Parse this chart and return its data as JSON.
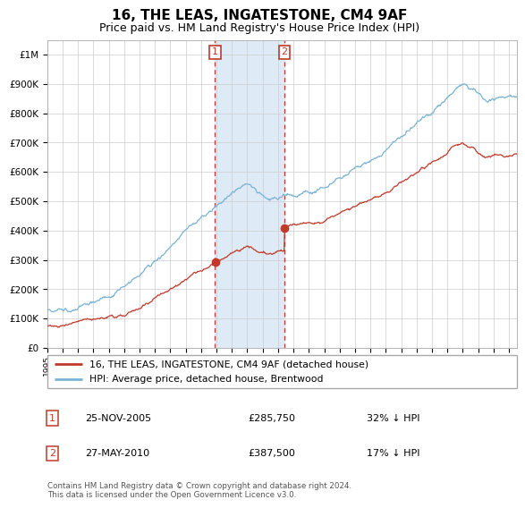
{
  "title": "16, THE LEAS, INGATESTONE, CM4 9AF",
  "subtitle": "Price paid vs. HM Land Registry's House Price Index (HPI)",
  "legend_line1": "16, THE LEAS, INGATESTONE, CM4 9AF (detached house)",
  "legend_line2": "HPI: Average price, detached house, Brentwood",
  "transaction1_date": "25-NOV-2005",
  "transaction1_price": "£285,750",
  "transaction1_hpi": "32% ↓ HPI",
  "transaction1_year": 2005.9,
  "transaction1_value": 285750,
  "transaction2_date": "27-MAY-2010",
  "transaction2_price": "£387,500",
  "transaction2_hpi": "17% ↓ HPI",
  "transaction2_year": 2010.42,
  "transaction2_value": 387500,
  "footnote": "Contains HM Land Registry data © Crown copyright and database right 2024.\nThis data is licensed under the Open Government Licence v3.0.",
  "hpi_color": "#7ab3d4",
  "price_color": "#c0392b",
  "band_color": "#deeaf5",
  "ylim_min": 0,
  "ylim_max": 1050000,
  "xmin": 1995,
  "xmax": 2025.5
}
